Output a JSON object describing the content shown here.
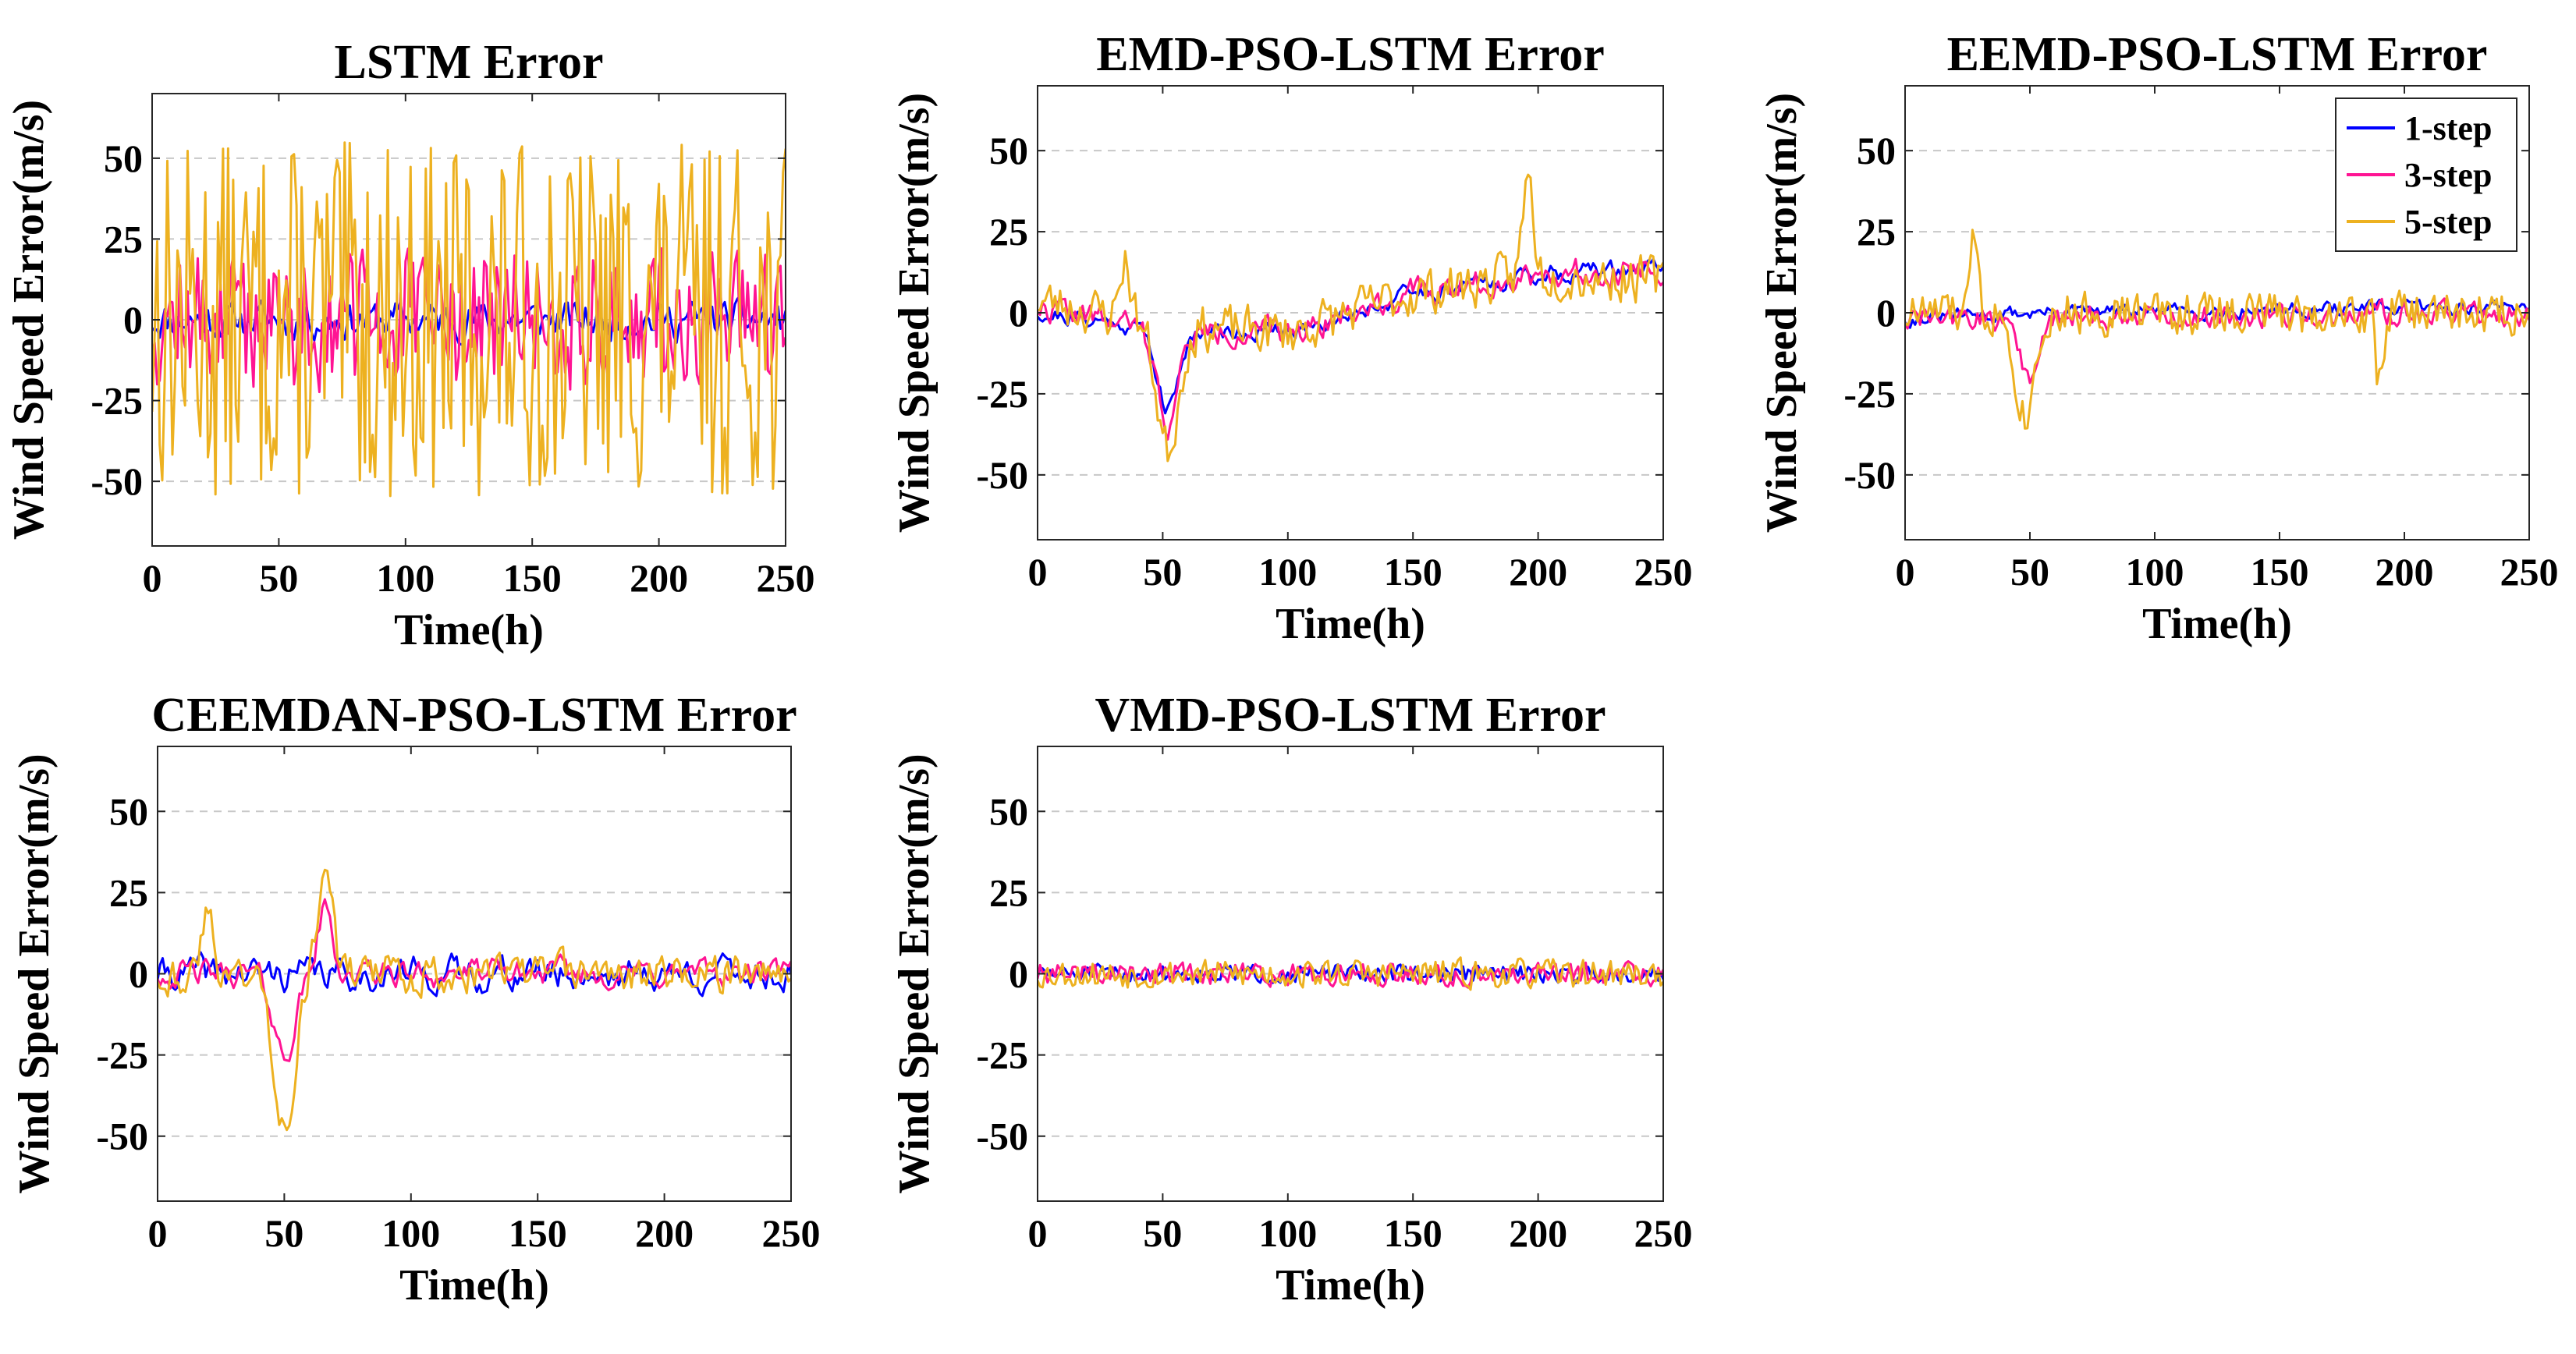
{
  "figure": {
    "colors": {
      "1-step": "#0000ff",
      "3-step": "#ff1493",
      "5-step": "#edb120",
      "grid": "#c8c8c8",
      "axes": "#262626"
    }
  },
  "chart_data": [
    {
      "type": "line",
      "title": "LSTM Error",
      "xlabel": "Time(h)",
      "ylabel": "Wind Speed Error(m/s)",
      "xlim": [
        0,
        250
      ],
      "ylim": [
        -70,
        70
      ],
      "xticks": [
        0,
        50,
        100,
        150,
        200,
        250
      ],
      "yticks": [
        -50,
        -25,
        0,
        25,
        50
      ],
      "grid": "horizontal-dashed",
      "series": [
        {
          "name": "1-step",
          "amp": 9,
          "seed": 11,
          "smooth": 0.45,
          "events": [],
          "drift": []
        },
        {
          "name": "3-step",
          "amp": 24,
          "seed": 12,
          "smooth": 0.15,
          "events": [],
          "drift": []
        },
        {
          "name": "5-step",
          "amp": 55,
          "seed": 13,
          "smooth": 0.0,
          "events": [],
          "drift": []
        }
      ]
    },
    {
      "type": "line",
      "title": "EMD-PSO-LSTM Error",
      "xlabel": "Time(h)",
      "ylabel": "Wind Speed Error(m/s)",
      "xlim": [
        0,
        250
      ],
      "ylim": [
        -70,
        70
      ],
      "xticks": [
        0,
        50,
        100,
        150,
        200,
        250
      ],
      "yticks": [
        -50,
        -25,
        0,
        25,
        50
      ],
      "grid": "horizontal-dashed",
      "series": [
        {
          "name": "1-step",
          "amp": 5,
          "seed": 21,
          "smooth": 0.55,
          "events": [
            {
              "t": 52,
              "v": -25,
              "w": 6
            }
          ],
          "drift": [
            [
              0,
              0
            ],
            [
              50,
              -5
            ],
            [
              100,
              -6
            ],
            [
              150,
              6
            ],
            [
              200,
              12
            ],
            [
              250,
              14
            ]
          ]
        },
        {
          "name": "3-step",
          "amp": 7,
          "seed": 22,
          "smooth": 0.5,
          "events": [
            {
              "t": 52,
              "v": -28,
              "w": 6
            }
          ],
          "drift": [
            [
              0,
              2
            ],
            [
              50,
              -6
            ],
            [
              100,
              -6
            ],
            [
              150,
              6
            ],
            [
              200,
              12
            ],
            [
              250,
              14
            ]
          ]
        },
        {
          "name": "5-step",
          "amp": 10,
          "seed": 23,
          "smooth": 0.35,
          "events": [
            {
              "t": 52,
              "v": -38,
              "w": 6
            },
            {
              "t": 196,
              "v": 30,
              "w": 3
            },
            {
              "t": 35,
              "v": 18,
              "w": 3
            }
          ],
          "drift": [
            [
              0,
              4
            ],
            [
              50,
              -4
            ],
            [
              100,
              -6
            ],
            [
              150,
              6
            ],
            [
              200,
              12
            ],
            [
              250,
              10
            ]
          ]
        }
      ]
    },
    {
      "type": "line",
      "title": "EEMD-PSO-LSTM Error",
      "xlabel": "Time(h)",
      "ylabel": "Wind Speed Error(m/s)",
      "xlim": [
        0,
        250
      ],
      "ylim": [
        -70,
        70
      ],
      "xticks": [
        0,
        50,
        100,
        150,
        200,
        250
      ],
      "yticks": [
        -50,
        -25,
        0,
        25,
        50
      ],
      "grid": "horizontal-dashed",
      "legend": {
        "position": "top-right",
        "entries": [
          "1-step",
          "3-step",
          "5-step"
        ]
      },
      "series": [
        {
          "name": "1-step",
          "amp": 4,
          "seed": 31,
          "smooth": 0.55,
          "events": [],
          "drift": [
            [
              0,
              -2
            ],
            [
              50,
              0
            ],
            [
              250,
              2
            ]
          ]
        },
        {
          "name": "3-step",
          "amp": 6,
          "seed": 32,
          "smooth": 0.45,
          "events": [
            {
              "t": 50,
              "v": -20,
              "w": 5
            }
          ],
          "drift": [
            [
              0,
              -2
            ],
            [
              250,
              0
            ]
          ]
        },
        {
          "name": "5-step",
          "amp": 9,
          "seed": 33,
          "smooth": 0.3,
          "events": [
            {
              "t": 48,
              "v": -32,
              "w": 5
            },
            {
              "t": 28,
              "v": 24,
              "w": 2
            },
            {
              "t": 190,
              "v": -22,
              "w": 2
            }
          ],
          "drift": [
            [
              0,
              0
            ],
            [
              250,
              0
            ]
          ]
        }
      ]
    },
    {
      "type": "line",
      "title": "CEEMDAN-PSO-LSTM Error",
      "xlabel": "Time(h)",
      "ylabel": "Wind Speed Error(m/s)",
      "xlim": [
        0,
        250
      ],
      "ylim": [
        -70,
        70
      ],
      "xticks": [
        0,
        50,
        100,
        150,
        200,
        250
      ],
      "yticks": [
        -50,
        -25,
        0,
        25,
        50
      ],
      "grid": "horizontal-dashed",
      "series": [
        {
          "name": "1-step",
          "amp": 10,
          "seed": 41,
          "smooth": 0.6,
          "events": [],
          "drift": []
        },
        {
          "name": "3-step",
          "amp": 8,
          "seed": 42,
          "smooth": 0.6,
          "events": [
            {
              "t": 50,
              "v": -25,
              "w": 6
            },
            {
              "t": 66,
              "v": 20,
              "w": 4
            }
          ],
          "drift": []
        },
        {
          "name": "5-step",
          "amp": 10,
          "seed": 43,
          "smooth": 0.5,
          "events": [
            {
              "t": 50,
              "v": -45,
              "w": 6
            },
            {
              "t": 66,
              "v": 32,
              "w": 4
            },
            {
              "t": 20,
              "v": 20,
              "w": 3
            }
          ],
          "drift": []
        }
      ]
    },
    {
      "type": "line",
      "title": "VMD-PSO-LSTM Error",
      "xlabel": "Time(h)",
      "ylabel": "Wind Speed Error(m/s)",
      "xlim": [
        0,
        250
      ],
      "ylim": [
        -70,
        70
      ],
      "xticks": [
        0,
        50,
        100,
        150,
        200,
        250
      ],
      "yticks": [
        -50,
        -25,
        0,
        25,
        50
      ],
      "grid": "horizontal-dashed",
      "series": [
        {
          "name": "1-step",
          "amp": 3.5,
          "seed": 51,
          "smooth": 0.3,
          "events": [],
          "drift": []
        },
        {
          "name": "3-step",
          "amp": 4.5,
          "seed": 52,
          "smooth": 0.3,
          "events": [],
          "drift": []
        },
        {
          "name": "5-step",
          "amp": 5.5,
          "seed": 53,
          "smooth": 0.25,
          "events": [],
          "drift": []
        }
      ]
    }
  ]
}
